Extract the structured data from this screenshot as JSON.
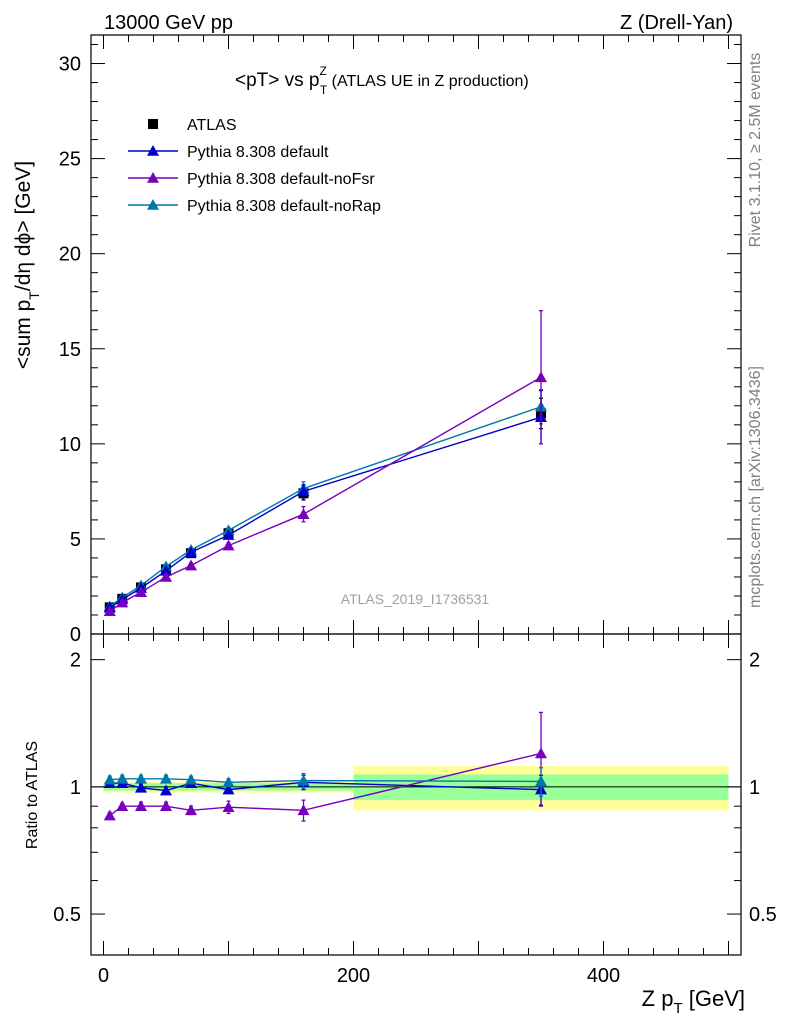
{
  "header": {
    "energy": "13000 GeV pp",
    "process": "Z (Drell-Yan)",
    "rivet": "Rivet 3.1.10, ≥ 2.5M events",
    "source": "mcplots.cern.ch [arXiv:1306.3436]",
    "analysis": "ATLAS_2019_I1736531"
  },
  "chart_data": [
    {
      "type": "line",
      "title": "<pT> vs p_T^Z (ATLAS UE in Z production)",
      "title_parts": {
        "main": "<pT> vs p",
        "sup": "Z",
        "sub": "T",
        "rest": " (ATLAS UE in Z production)"
      },
      "ylabel": "<sum p_T/dη dϕ> [GeV]",
      "ylabel_parts": {
        "a": "<sum p",
        "sub": "T",
        "b": "/dη dϕ> [GeV]"
      },
      "xlim": [
        -10,
        510
      ],
      "ylim": [
        0,
        31.5
      ],
      "yticks": [
        0,
        5,
        10,
        15,
        20,
        25,
        30
      ],
      "legend_position": "top-left",
      "x": [
        5,
        15,
        30,
        50,
        70,
        100,
        160,
        350
      ],
      "series": [
        {
          "name": "ATLAS",
          "color": "#000000",
          "marker": "square",
          "values": [
            1.4,
            1.85,
            2.45,
            3.4,
            4.25,
            5.3,
            7.4,
            11.6
          ],
          "errors": [
            0.1,
            0.1,
            0.12,
            0.15,
            0.2,
            0.25,
            0.35,
            0.8
          ]
        },
        {
          "name": "Pythia 8.308 default",
          "color": "#0000cc",
          "marker": "triangle",
          "values": [
            1.38,
            1.82,
            2.42,
            3.32,
            4.3,
            5.2,
            7.5,
            11.4
          ],
          "errors": [
            0.05,
            0.05,
            0.08,
            0.1,
            0.12,
            0.15,
            0.35,
            1.4
          ]
        },
        {
          "name": "Pythia 8.308 default-noFsr",
          "color": "#7700bb",
          "marker": "triangle",
          "values": [
            1.2,
            1.65,
            2.2,
            3.0,
            3.6,
            4.65,
            6.3,
            13.5
          ],
          "errors": [
            0.05,
            0.05,
            0.07,
            0.1,
            0.12,
            0.15,
            0.4,
            3.5
          ]
        },
        {
          "name": "Pythia 8.308 default-noRap",
          "color": "#0077aa",
          "marker": "triangle",
          "values": [
            1.45,
            1.92,
            2.55,
            3.55,
            4.42,
            5.45,
            7.65,
            11.95
          ],
          "errors": [
            0.05,
            0.05,
            0.08,
            0.1,
            0.12,
            0.15,
            0.35,
            0.9
          ]
        }
      ]
    },
    {
      "type": "line",
      "ylabel": "Ratio to ATLAS",
      "xlabel": "Z p_T [GeV]",
      "xlabel_parts": {
        "a": "Z p",
        "sub": "T",
        "b": " [GeV]"
      },
      "xlim": [
        -10,
        510
      ],
      "xticks": [
        0,
        200,
        400
      ],
      "ylim": [
        0.4,
        2.3
      ],
      "yticks": [
        0.5,
        1,
        2
      ],
      "reference_band": {
        "bins": [
          [
            0,
            200
          ],
          [
            200,
            500
          ]
        ],
        "inner": [
          0.02,
          0.07
        ],
        "outer": [
          0.03,
          0.12
        ]
      },
      "x": [
        5,
        15,
        30,
        50,
        70,
        100,
        160,
        350
      ],
      "series": [
        {
          "name": "Pythia 8.308 default",
          "color": "#0000cc",
          "values": [
            1.02,
            1.02,
            0.995,
            0.98,
            1.02,
            0.985,
            1.025,
            0.985
          ],
          "errors": [
            0.02,
            0.02,
            0.02,
            0.02,
            0.02,
            0.02,
            0.04,
            0.08
          ]
        },
        {
          "name": "Pythia 8.308 default-noFsr",
          "color": "#7700bb",
          "values": [
            0.855,
            0.9,
            0.9,
            0.9,
            0.88,
            0.895,
            0.88,
            1.2
          ],
          "errors": [
            0.015,
            0.015,
            0.02,
            0.02,
            0.02,
            0.03,
            0.05,
            0.3
          ]
        },
        {
          "name": "Pythia 8.308 default-noRap",
          "color": "#0077aa",
          "values": [
            1.04,
            1.045,
            1.045,
            1.045,
            1.04,
            1.025,
            1.035,
            1.03
          ],
          "errors": [
            0.02,
            0.02,
            0.02,
            0.02,
            0.02,
            0.02,
            0.04,
            0.08
          ]
        }
      ]
    }
  ]
}
